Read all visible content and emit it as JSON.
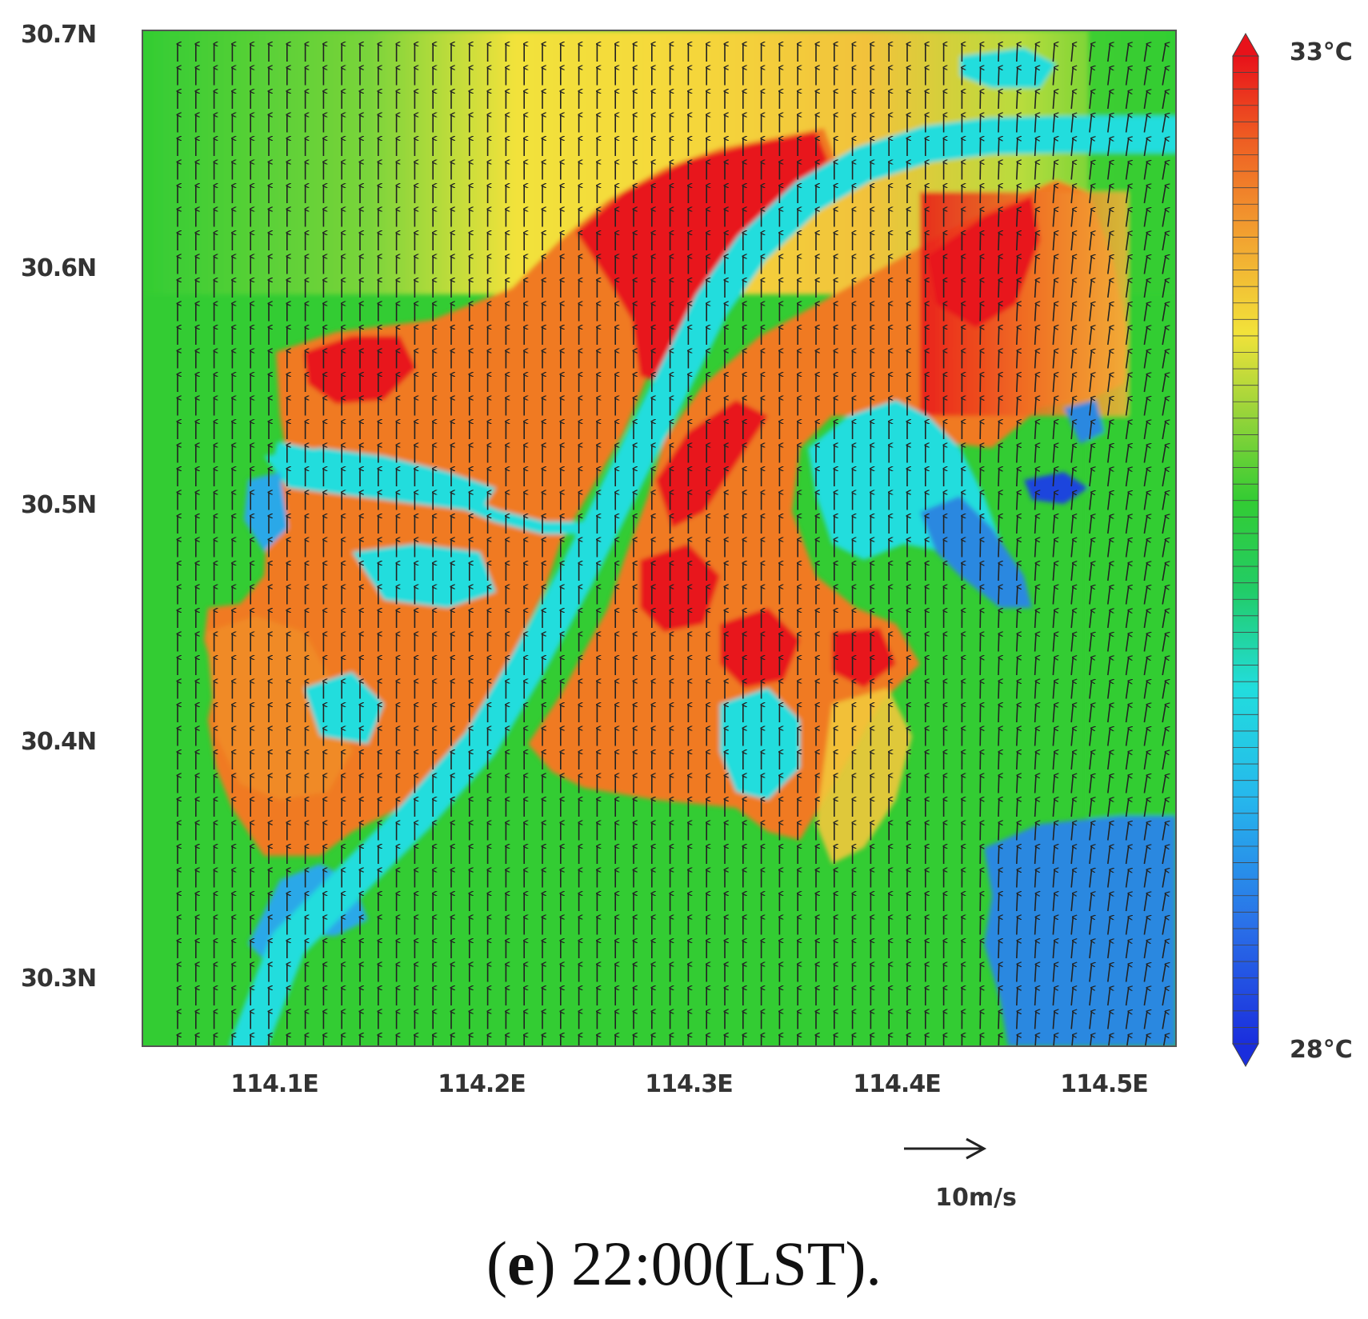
{
  "map": {
    "lat_ticks": [
      "30.7N",
      "30.6N",
      "30.5N",
      "30.4N",
      "30.3N"
    ],
    "lon_ticks": [
      "114.1E",
      "114.2E",
      "114.3E",
      "114.4E",
      "114.5E"
    ],
    "lat_range": [
      30.27,
      30.7
    ],
    "lon_range": [
      114.03,
      114.53
    ],
    "wind_direction": "southerly (arrows pointing north)",
    "colors": {
      "hot": "#e8121a",
      "warm": "#f07a20",
      "yellow": "#f2e23a",
      "green": "#33cc33",
      "cyan": "#22dddd",
      "blue": "#2a88e0",
      "deep_blue": "#1a44dd"
    }
  },
  "colorbar": {
    "max_label": "33°C",
    "min_label": "28°C",
    "min": 28,
    "max": 33
  },
  "reference_vector": {
    "label": "10m/s",
    "speed": 10
  },
  "caption": {
    "panel": "(e)",
    "panel_letter": "e",
    "time": " 22:00(LST)."
  }
}
